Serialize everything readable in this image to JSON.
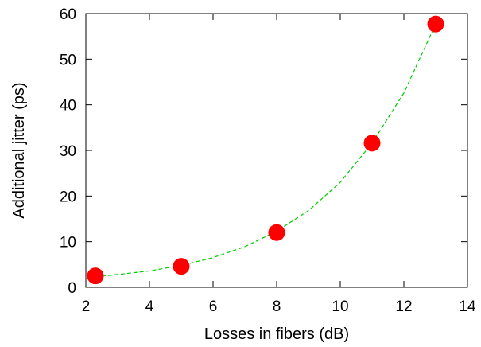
{
  "chart_data": {
    "type": "scatter",
    "title": "",
    "xlabel": "Losses in fibers (dB)",
    "ylabel": "Additional jitter (ps)",
    "xlim": [
      2,
      14
    ],
    "ylim": [
      0,
      60
    ],
    "xticks": [
      2,
      4,
      6,
      8,
      10,
      12,
      14
    ],
    "yticks": [
      0,
      10,
      20,
      30,
      40,
      50,
      60
    ],
    "grid": false,
    "points": [
      {
        "x": 2.3,
        "y": 2.5
      },
      {
        "x": 5.0,
        "y": 4.6
      },
      {
        "x": 8.0,
        "y": 12.0
      },
      {
        "x": 11.0,
        "y": 31.6
      },
      {
        "x": 13.0,
        "y": 57.7
      }
    ],
    "fit": {
      "style": "dashed",
      "x": [
        2.3,
        3,
        4,
        5,
        6,
        7,
        8,
        9,
        10,
        11,
        12,
        13
      ],
      "y": [
        2.3,
        2.8,
        3.6,
        4.8,
        6.5,
        8.9,
        12.3,
        16.8,
        23.0,
        31.6,
        42.6,
        57.7
      ]
    },
    "colors": {
      "points": "#ff0000",
      "fit": "#00cc00",
      "axes": "#000000"
    }
  }
}
